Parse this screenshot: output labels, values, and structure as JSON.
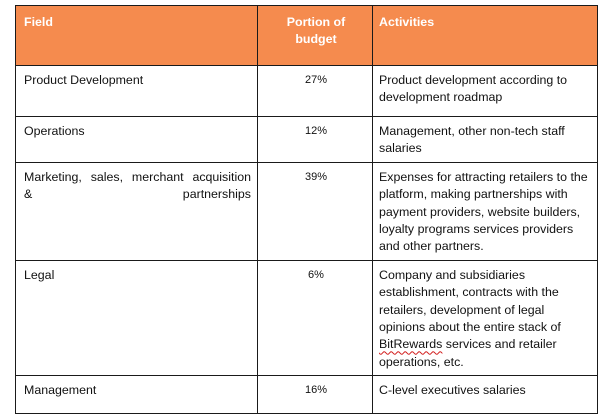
{
  "table": {
    "headers": {
      "field": "Field",
      "portion": "Portion of budget",
      "activities": "Activities"
    },
    "rows": [
      {
        "field": "Product Development",
        "portion": "27%",
        "activities": "Product development according to development roadmap"
      },
      {
        "field": "Operations",
        "portion": "12%",
        "activities": "Management, other non-tech staff salaries"
      },
      {
        "field_line1": "Marketing, sales, merchant acquisition",
        "field_line2": "& partnerships",
        "portion": "39%",
        "activities": "Expenses for attracting retailers to the platform, making partnerships with payment providers, website builders, loyalty programs services providers and other partners."
      },
      {
        "field": "Legal",
        "portion": "6%",
        "activities_pre": "Company and subsidiaries establishment, contracts with the retailers, development of legal opinions about the entire stack of ",
        "activities_brand": "BitRewards",
        "activities_post": " services and retailer operations, etc."
      },
      {
        "field": "Management",
        "portion": "16%",
        "activities": "C-level executives salaries"
      }
    ]
  },
  "colors": {
    "header_background": "#f58b4e",
    "header_text": "#ffffff",
    "border": "#1a1a1a",
    "spellcheck_underline": "#d11a1a"
  }
}
